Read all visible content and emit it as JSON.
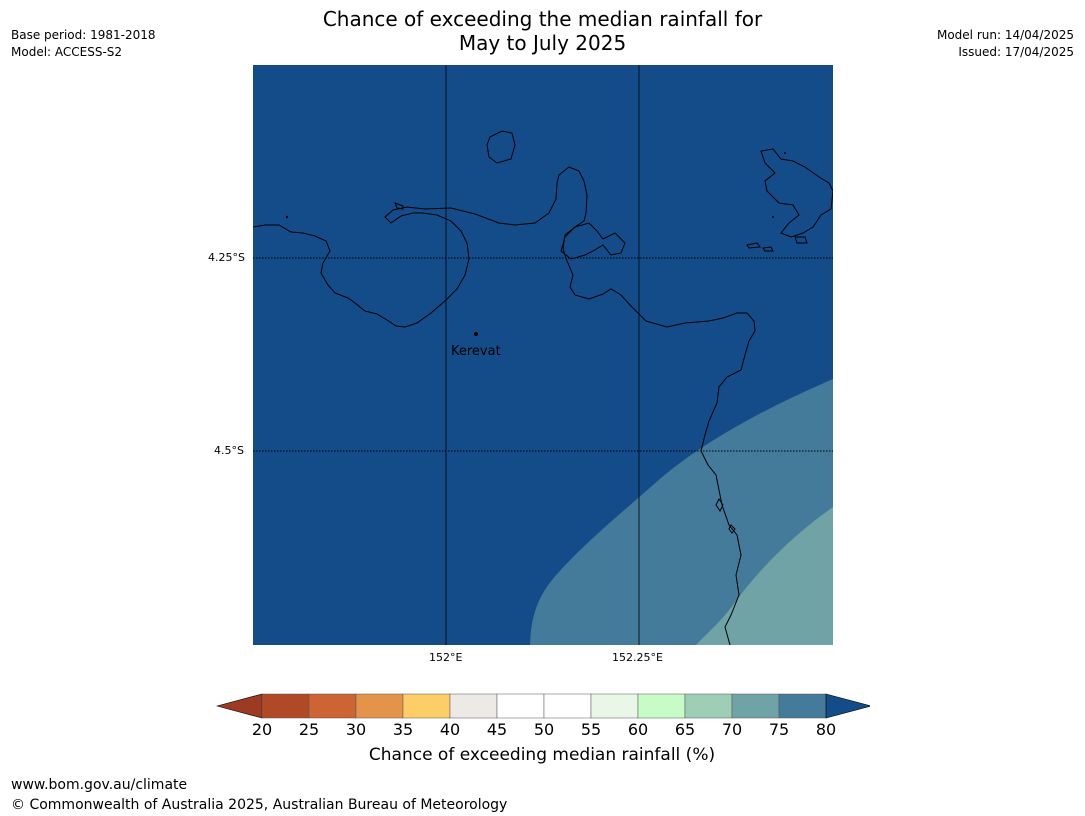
{
  "title": {
    "line1": "Chance of exceeding the median rainfall for",
    "line2": "May to July 2025"
  },
  "meta_left": {
    "base_period": "Base period: 1981-2018",
    "model": "Model: ACCESS-S2"
  },
  "meta_right": {
    "model_run": "Model run: 14/04/2025",
    "issued": "Issued: 17/04/2025"
  },
  "map": {
    "gridlines": {
      "latitudes": [
        "4.25°S",
        "4.5°S"
      ],
      "longitudes": [
        "152°E",
        "152.25°E"
      ]
    },
    "place": {
      "name": "Kerevat"
    },
    "zones": [
      {
        "range": "75-80",
        "color": "#134c88"
      },
      {
        "range": "70-75",
        "color": "#447a9a"
      },
      {
        "range": "65-70",
        "color": "#6fa3a6"
      }
    ]
  },
  "colorbar": {
    "ticks": [
      "20",
      "25",
      "30",
      "35",
      "40",
      "45",
      "50",
      "55",
      "60",
      "65",
      "70",
      "75",
      "80"
    ],
    "under_color": "#9c3a22",
    "over_color": "#134c88",
    "colors": [
      "#b04a26",
      "#cc6533",
      "#e3944a",
      "#fdcd67",
      "#ede9e4",
      "#ffffff",
      "#ffffff",
      "#eaf7e8",
      "#c8fcc6",
      "#9ecfb6",
      "#6fa3a6",
      "#447a9a"
    ],
    "label": "Chance of exceeding median rainfall (%)"
  },
  "footer": {
    "url": "www.bom.gov.au/climate",
    "copyright": "© Commonwealth of Australia 2025, Australian Bureau of Meteorology"
  }
}
